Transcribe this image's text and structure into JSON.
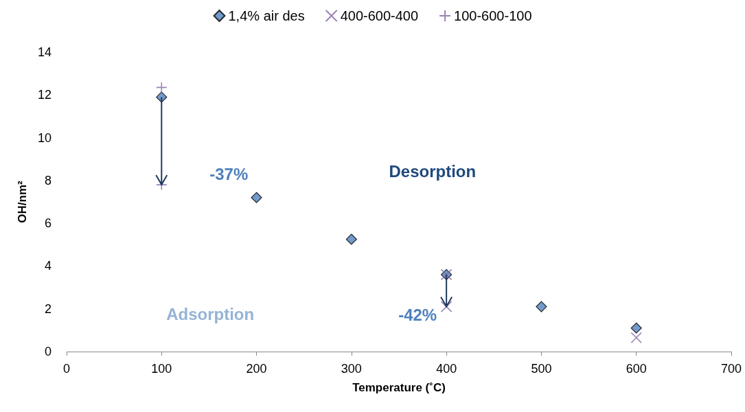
{
  "chart_data": {
    "type": "scatter",
    "xlabel": "Temperature (˚C)",
    "ylabel": "OH/nm²",
    "xlim": [
      0,
      700
    ],
    "xticks": [
      0,
      100,
      200,
      300,
      400,
      500,
      600,
      700
    ],
    "ylim": [
      0,
      14
    ],
    "yticks": [
      0,
      2,
      4,
      6,
      8,
      10,
      12,
      14
    ],
    "grid": false,
    "legend": "top",
    "series": [
      {
        "name": "1,4% air des",
        "color": "#4f81bd",
        "marker": "diamond",
        "x": [
          100,
          200,
          300,
          400,
          500,
          600
        ],
        "values": [
          11.9,
          7.2,
          5.25,
          3.6,
          2.1,
          1.1
        ]
      },
      {
        "name": "400-600-400",
        "color": "#8064a2",
        "marker": "x",
        "x": [
          400,
          400,
          600
        ],
        "values": [
          3.6,
          2.1,
          0.65
        ]
      },
      {
        "name": "100-600-100",
        "color": "#8064a2",
        "marker": "cross",
        "x": [
          100,
          100
        ],
        "values": [
          12.35,
          7.8
        ]
      }
    ],
    "annotations": [
      {
        "text": "-37%",
        "x": 100,
        "y": 7.8
      },
      {
        "text": "-42%",
        "x": 400,
        "y": 2.1
      },
      "Desorption",
      "Adsorption"
    ]
  }
}
